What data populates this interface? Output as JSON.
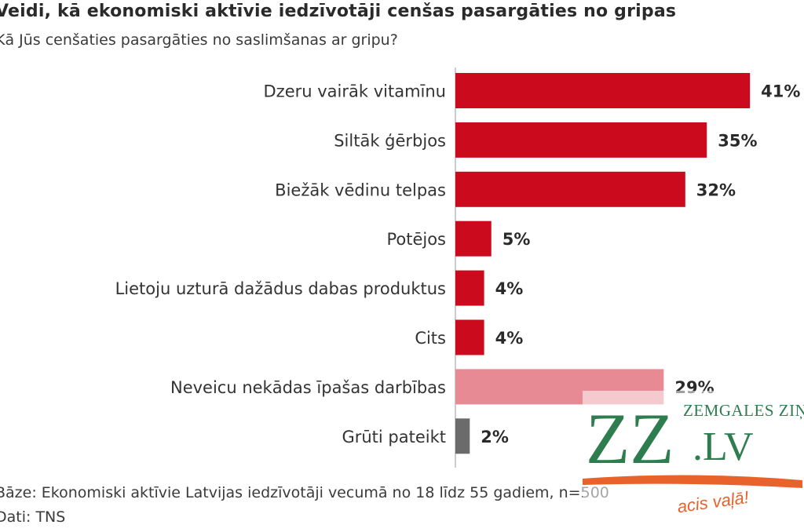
{
  "chart_data": {
    "type": "bar",
    "orientation": "horizontal",
    "title": "Veidi, kā ekonomiski aktīvie iedzīvotāji cenšas pasargāties no gripas",
    "subtitle": "Kā Jūs cenšaties pasargāties no saslimšanas ar gripu?",
    "categories": [
      "Dzeru vairāk vitamīnu",
      "Siltāk ģērbjos",
      "Biežāk vēdinu telpas",
      "Potējos",
      "Lietoju uzturā dažādus dabas produktus",
      "Cits",
      "Neveicu nekādas īpašas darbības",
      "Grūti pateikt"
    ],
    "values": [
      41,
      35,
      32,
      5,
      4,
      4,
      29,
      2
    ],
    "value_labels": [
      "41%",
      "35%",
      "32%",
      "5%",
      "4%",
      "4%",
      "29%",
      "2%"
    ],
    "bar_colors": [
      "#cc0a1e",
      "#cc0a1e",
      "#cc0a1e",
      "#cc0a1e",
      "#cc0a1e",
      "#cc0a1e",
      "#e88a94",
      "#6b6b6b"
    ],
    "unit": "%",
    "grid": false,
    "legend": "none"
  },
  "footer": {
    "base": "Bāze: Ekonomiski aktīvie Latvijas iedzīvotāji vecumā no 18 līdz 55 gadiem, n=500",
    "source": "Dati: TNS"
  },
  "watermark": {
    "brand_top": "ZEMGALES ZIŅAS",
    "brand_main": "ZZ",
    "brand_domain": ".LV",
    "brand_slogan": "acis vaļā!",
    "colors": {
      "green": "#2e7d4f",
      "orange": "#e8622c"
    }
  }
}
